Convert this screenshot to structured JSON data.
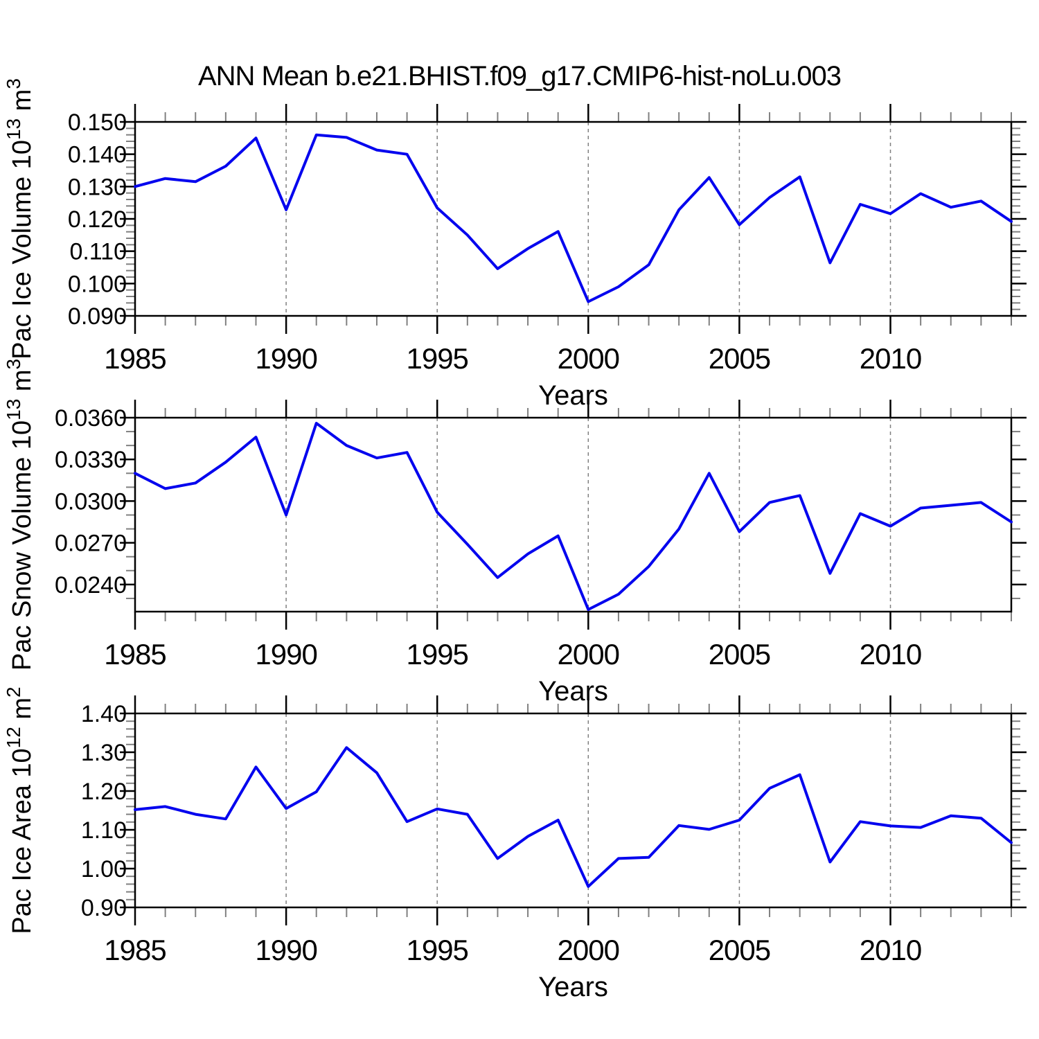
{
  "title": "ANN Mean b.e21.BHIST.f09_g17.CMIP6-hist-noLu.003",
  "colors": {
    "line": "#0404ee",
    "frame": "#000000",
    "major_tick": "#000000",
    "minor_tick": "#808080",
    "gridline": "#808080",
    "text": "#000000",
    "background": "#ffffff"
  },
  "x_axis": {
    "label": "Years",
    "years": [
      1985,
      1986,
      1987,
      1988,
      1989,
      1990,
      1991,
      1992,
      1993,
      1994,
      1995,
      1996,
      1997,
      1998,
      1999,
      2000,
      2001,
      2002,
      2003,
      2004,
      2005,
      2006,
      2007,
      2008,
      2009,
      2010,
      2011,
      2012,
      2013,
      2014
    ],
    "major_years": [
      1985,
      1990,
      1995,
      2000,
      2005,
      2010
    ],
    "major_year_labels": [
      "1985",
      "1990",
      "1995",
      "2000",
      "2005",
      "2010"
    ],
    "gridline_years": [
      1990,
      1995,
      2000,
      2005,
      2010
    ],
    "gridline_style": "dashed"
  },
  "chart_data": [
    {
      "type": "line",
      "name": "pac-ice-volume",
      "ylabel": "Pac Ice Volume 10¹³ m³",
      "ylabel_parts": [
        [
          "t",
          "Pac Ice Volume 10"
        ],
        [
          "s",
          "13"
        ],
        [
          "t",
          " m"
        ],
        [
          "s",
          "3"
        ]
      ],
      "ylim": [
        0.09,
        0.15
      ],
      "yticks": [
        0.09,
        0.1,
        0.11,
        0.12,
        0.13,
        0.14,
        0.15
      ],
      "ytick_labels": [
        "0.090",
        "0.100",
        "0.110",
        "0.120",
        "0.130",
        "0.140",
        "0.150"
      ],
      "yminor_step": 0.002,
      "values": [
        0.13,
        0.1325,
        0.1315,
        0.1363,
        0.145,
        0.1228,
        0.146,
        0.1452,
        0.1413,
        0.14,
        0.1234,
        0.115,
        0.1046,
        0.1108,
        0.1161,
        0.0944,
        0.099,
        0.1058,
        0.1228,
        0.1328,
        0.1182,
        0.1266,
        0.133,
        0.1064,
        0.1245,
        0.1216,
        0.1278,
        0.1236,
        0.1255,
        0.1192
      ]
    },
    {
      "type": "line",
      "name": "pac-snow-volume",
      "ylabel": "Pac Snow Volume 10¹³ m³",
      "ylabel_parts": [
        [
          "t",
          "Pac Snow Volume 10"
        ],
        [
          "s",
          "13"
        ],
        [
          "t",
          " m"
        ],
        [
          "s",
          "3"
        ]
      ],
      "ylim": [
        0.02205,
        0.036
      ],
      "yticks": [
        0.024,
        0.027,
        0.03,
        0.033,
        0.036
      ],
      "ytick_labels": [
        "0.0240",
        "0.0270",
        "0.0300",
        "0.0330",
        "0.0360"
      ],
      "yminor_step": 0.001,
      "values": [
        0.032,
        0.0309,
        0.0313,
        0.0328,
        0.0346,
        0.029,
        0.0356,
        0.034,
        0.0331,
        0.0335,
        0.0292,
        0.0269,
        0.0245,
        0.0262,
        0.0275,
        0.0222,
        0.0233,
        0.0253,
        0.028,
        0.032,
        0.0278,
        0.0299,
        0.0304,
        0.0248,
        0.0291,
        0.0282,
        0.0295,
        0.0297,
        0.0299,
        0.0285
      ]
    },
    {
      "type": "line",
      "name": "pac-ice-area",
      "ylabel": "Pac Ice Area 10¹² m²",
      "ylabel_parts": [
        [
          "t",
          "Pac Ice Area 10"
        ],
        [
          "s",
          "12"
        ],
        [
          "t",
          " m"
        ],
        [
          "s",
          "2"
        ]
      ],
      "ylim": [
        0.9,
        1.4
      ],
      "yticks": [
        0.9,
        1.0,
        1.1,
        1.2,
        1.3,
        1.4
      ],
      "ytick_labels": [
        "0.90",
        "1.00",
        "1.10",
        "1.20",
        "1.30",
        "1.40"
      ],
      "yminor_step": 0.02,
      "values": [
        1.152,
        1.16,
        1.14,
        1.128,
        1.262,
        1.155,
        1.198,
        1.312,
        1.247,
        1.121,
        1.154,
        1.14,
        1.026,
        1.083,
        1.125,
        0.954,
        1.026,
        1.029,
        1.111,
        1.101,
        1.125,
        1.207,
        1.242,
        1.017,
        1.121,
        1.11,
        1.106,
        1.136,
        1.13,
        1.067
      ]
    }
  ]
}
